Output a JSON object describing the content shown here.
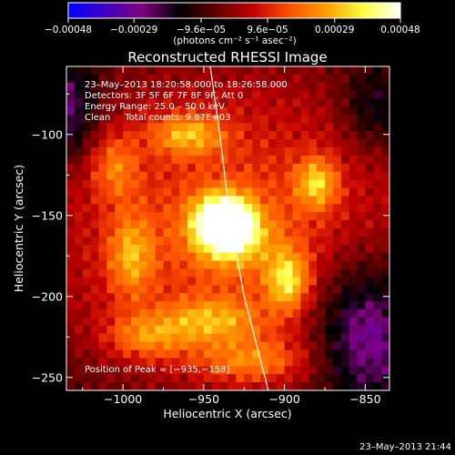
{
  "chart_data": {
    "type": "heatmap",
    "title": "Reconstructed RHESSI Image",
    "xlabel": "Heliocentric X (arcsec)",
    "ylabel": "Heliocentric Y (arcsec)",
    "xlim": [
      -1035,
      -835
    ],
    "ylim": [
      -258,
      -58
    ],
    "x_ticks": [
      -1000,
      -950,
      -900,
      -850
    ],
    "y_ticks": [
      -100,
      -150,
      -200,
      -250
    ],
    "x_tick_labels": [
      "−1000",
      "−950",
      "−900",
      "−850"
    ],
    "y_tick_labels": [
      "−100",
      "−150",
      "−200",
      "−250"
    ],
    "colorbar": {
      "range": [
        -0.00048,
        0.00048
      ],
      "tick_values": [
        -0.00048,
        -0.00029,
        -9.6e-05,
        9.6e-05,
        0.00029,
        0.00048
      ],
      "tick_labels": [
        "−0.00048",
        "−0.00029",
        "−9.6e−05",
        "9.6e−05",
        "0.00029",
        "0.00048"
      ],
      "units_label": "(photons cm⁻² s⁻¹ asec⁻²)",
      "colors": [
        "#0000ff",
        "#4000c0",
        "#800080",
        "#000000",
        "#600000",
        "#c00000",
        "#ff5000",
        "#ffa000",
        "#ffff40",
        "#ffffff"
      ]
    },
    "annotations": [
      "23–May–2013 18:20:58.000 to 18:26:58.000",
      "Detectors: 3F 5F 6F 7F 8F 9F, Att 0",
      "Energy Range: 25.0 – 50.0 keV",
      "Clean     Total counts: 9.87E+03"
    ],
    "peak_label": "Position of Peak = [−935,−158]",
    "peak": [
      -935,
      -158
    ],
    "limb_curve": [
      [
        -946,
        -58
      ],
      [
        -940,
        -100
      ],
      [
        -934,
        -150
      ],
      [
        -925,
        -200
      ],
      [
        -910,
        -258
      ]
    ],
    "blobs": [
      {
        "x": -938,
        "y": -153,
        "sx": 12,
        "sy": 11,
        "amp": 1.0
      },
      {
        "x": -933,
        "y": -163,
        "sx": 16,
        "sy": 13,
        "amp": 0.55
      },
      {
        "x": -898,
        "y": -190,
        "sx": 9,
        "sy": 13,
        "amp": 0.62
      },
      {
        "x": -880,
        "y": -130,
        "sx": 9,
        "sy": 11,
        "amp": 0.55
      },
      {
        "x": -960,
        "y": -100,
        "sx": 16,
        "sy": 9,
        "amp": 0.5
      },
      {
        "x": -995,
        "y": -175,
        "sx": 10,
        "sy": 18,
        "amp": 0.45
      },
      {
        "x": -985,
        "y": -225,
        "sx": 18,
        "sy": 10,
        "amp": 0.4
      },
      {
        "x": -945,
        "y": -215,
        "sx": 22,
        "sy": 10,
        "amp": 0.45
      },
      {
        "x": -1005,
        "y": -120,
        "sx": 10,
        "sy": 14,
        "amp": 0.35
      },
      {
        "x": -920,
        "y": -240,
        "sx": 24,
        "sy": 10,
        "amp": 0.4
      }
    ],
    "negative_regions": [
      {
        "x": -1035,
        "y": -85,
        "sx": 14,
        "sy": 22,
        "amp": 0.45
      },
      {
        "x": -850,
        "y": -220,
        "sx": 22,
        "sy": 30,
        "amp": 0.6
      },
      {
        "x": -845,
        "y": -85,
        "sx": 14,
        "sy": 18,
        "amp": 0.3
      }
    ]
  },
  "footer": {
    "timestamp": "23–May–2013 21:44"
  }
}
